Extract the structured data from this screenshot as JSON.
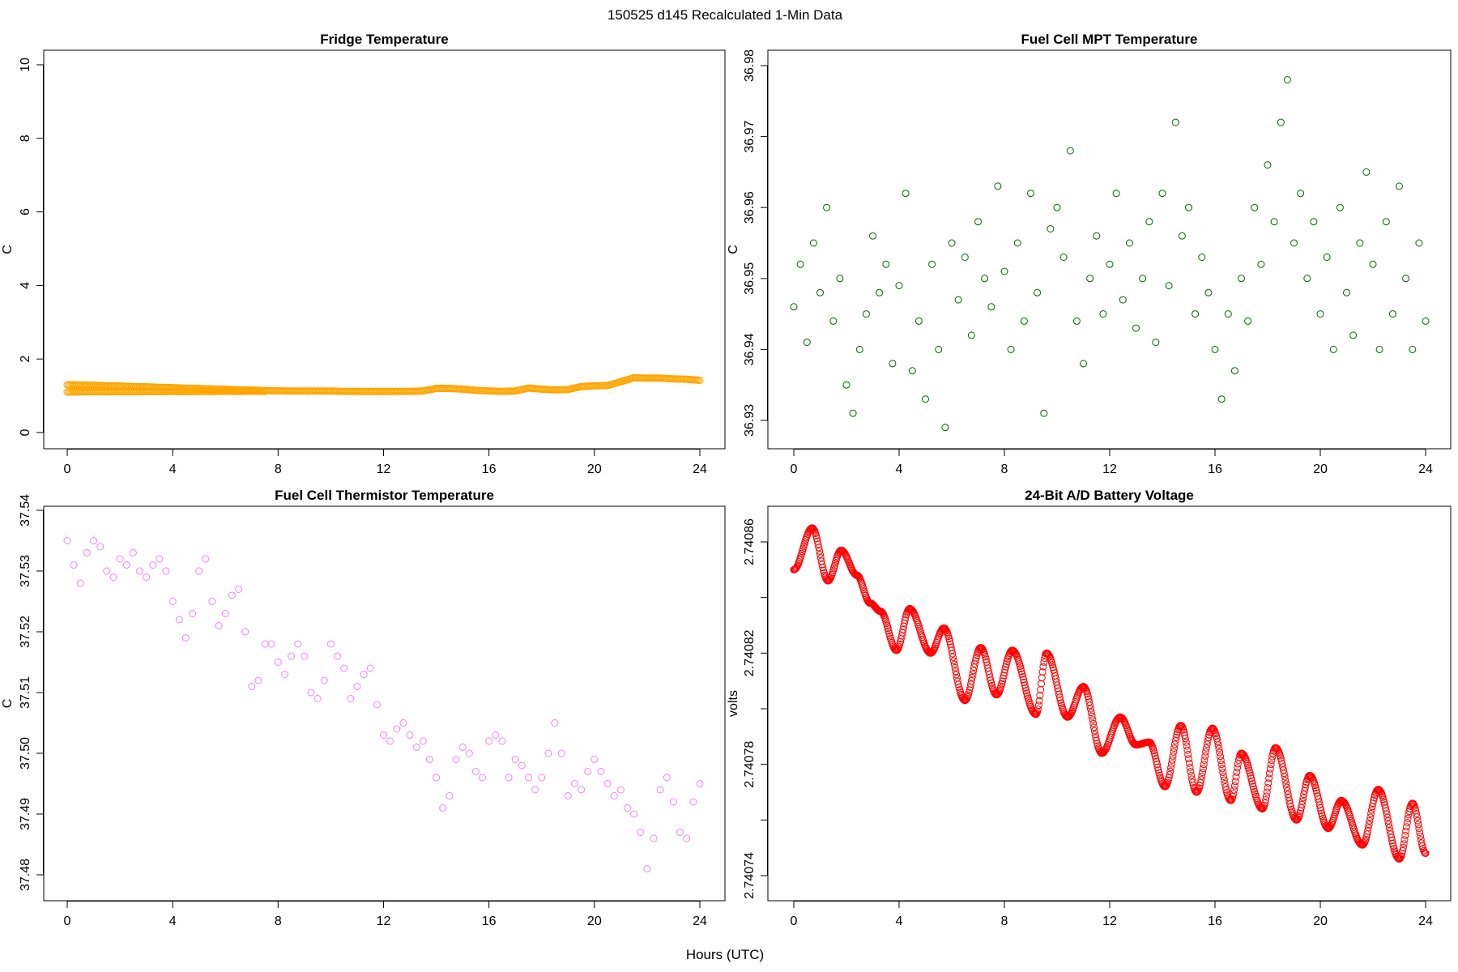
{
  "title": "150525   d145   Recalculated 1-Min Data",
  "xlabel": "Hours (UTC)",
  "chart_data": [
    {
      "type": "scatter",
      "title": "Fridge Temperature",
      "ylabel": "C",
      "color": "#FFA500",
      "xlim": [
        0,
        24
      ],
      "ylim": [
        0,
        10
      ],
      "xticks": [
        0,
        4,
        8,
        12,
        16,
        20,
        24
      ],
      "yticks": [
        0,
        2,
        4,
        6,
        8,
        10
      ],
      "ytick_labels": [
        "0",
        "2",
        "4",
        "6",
        "8",
        "10"
      ],
      "x_step": 0.5,
      "y": [
        1.2,
        1.2,
        1.2,
        1.19,
        1.19,
        1.18,
        1.18,
        1.17,
        1.17,
        1.16,
        1.16,
        1.15,
        1.15,
        1.14,
        1.14,
        1.13,
        1.13,
        1.13,
        1.13,
        1.13,
        1.13,
        1.12,
        1.12,
        1.12,
        1.12,
        1.12,
        1.12,
        1.13,
        1.2,
        1.2,
        1.18,
        1.15,
        1.13,
        1.12,
        1.13,
        1.21,
        1.18,
        1.16,
        1.17,
        1.25,
        1.27,
        1.28,
        1.38,
        1.49,
        1.48,
        1.48,
        1.46,
        1.45,
        1.42
      ]
    },
    {
      "type": "scatter",
      "title": "Fuel Cell MPT Temperature",
      "ylabel": "C",
      "color": "#006400",
      "xlim": [
        0,
        24
      ],
      "ylim": [
        36.928,
        36.982
      ],
      "xticks": [
        0,
        4,
        8,
        12,
        16,
        20,
        24
      ],
      "yticks": [
        36.93,
        36.94,
        36.95,
        36.96,
        36.97,
        36.98
      ],
      "ytick_labels": [
        "36.93",
        "36.94",
        "36.95",
        "36.96",
        "36.97",
        "36.98"
      ],
      "x_step": 0.25,
      "y": [
        36.946,
        36.952,
        36.941,
        36.955,
        36.948,
        36.96,
        36.944,
        36.95,
        36.935,
        36.931,
        36.94,
        36.945,
        36.956,
        36.948,
        36.952,
        36.938,
        36.949,
        36.962,
        36.937,
        36.944,
        36.933,
        36.952,
        36.94,
        36.929,
        36.955,
        36.947,
        36.953,
        36.942,
        36.958,
        36.95,
        36.946,
        36.963,
        36.951,
        36.94,
        36.955,
        36.944,
        36.962,
        36.948,
        36.931,
        36.957,
        36.96,
        36.953,
        36.968,
        36.944,
        36.938,
        36.95,
        36.956,
        36.945,
        36.952,
        36.962,
        36.947,
        36.955,
        36.943,
        36.95,
        36.958,
        36.941,
        36.962,
        36.949,
        36.972,
        36.956,
        36.96,
        36.945,
        36.953,
        36.948,
        36.94,
        36.933,
        36.945,
        36.937,
        36.95,
        36.944,
        36.96,
        36.952,
        36.966,
        36.958,
        36.972,
        36.978,
        36.955,
        36.962,
        36.95,
        36.958,
        36.945,
        36.953,
        36.94,
        36.96,
        36.948,
        36.942,
        36.955,
        36.965,
        36.952,
        36.94,
        36.958,
        36.945,
        36.963,
        36.95,
        36.94,
        36.955,
        36.944
      ]
    },
    {
      "type": "scatter",
      "title": "Fuel Cell Thermistor Temperature",
      "ylabel": "C",
      "color": "#EE82EE",
      "xlim": [
        0,
        24
      ],
      "ylim": [
        37.477,
        37.54
      ],
      "xticks": [
        0,
        4,
        8,
        12,
        16,
        20,
        24
      ],
      "yticks": [
        37.48,
        37.49,
        37.5,
        37.51,
        37.52,
        37.53,
        37.54
      ],
      "ytick_labels": [
        "37.48",
        "37.49",
        "37.50",
        "37.51",
        "37.52",
        "37.53",
        "37.54"
      ],
      "x_step": 0.25,
      "y": [
        37.535,
        37.531,
        37.528,
        37.533,
        37.535,
        37.534,
        37.53,
        37.529,
        37.532,
        37.531,
        37.533,
        37.53,
        37.529,
        37.531,
        37.532,
        37.53,
        37.525,
        37.522,
        37.519,
        37.523,
        37.53,
        37.532,
        37.525,
        37.521,
        37.523,
        37.526,
        37.527,
        37.52,
        37.511,
        37.512,
        37.518,
        37.518,
        37.515,
        37.513,
        37.516,
        37.518,
        37.516,
        37.51,
        37.509,
        37.512,
        37.518,
        37.516,
        37.514,
        37.509,
        37.511,
        37.513,
        37.514,
        37.508,
        37.503,
        37.502,
        37.504,
        37.505,
        37.503,
        37.501,
        37.502,
        37.499,
        37.496,
        37.491,
        37.493,
        37.499,
        37.501,
        37.5,
        37.497,
        37.496,
        37.502,
        37.503,
        37.502,
        37.496,
        37.499,
        37.498,
        37.496,
        37.494,
        37.496,
        37.5,
        37.505,
        37.5,
        37.493,
        37.495,
        37.494,
        37.497,
        37.499,
        37.497,
        37.495,
        37.493,
        37.494,
        37.491,
        37.49,
        37.487,
        37.481,
        37.486,
        37.494,
        37.496,
        37.492,
        37.487,
        37.486,
        37.492,
        37.495
      ]
    },
    {
      "type": "scatter",
      "title": "24-Bit A/D Battery Voltage",
      "ylabel": "volts",
      "color": "#FF0000",
      "xlim": [
        0,
        24
      ],
      "ylim": [
        2.74073,
        2.740873
      ],
      "xticks": [
        0,
        4,
        8,
        12,
        16,
        20,
        24
      ],
      "yticks": [
        2.74074,
        2.74076,
        2.74078,
        2.7408,
        2.74082,
        2.74084,
        2.74086
      ],
      "ytick_labels": [
        "2.74074",
        "",
        "2.74078",
        "",
        "2.74082",
        "",
        "2.74086"
      ],
      "x": [
        0,
        0.7,
        1.3,
        1.8,
        2.4,
        2.9,
        3.3,
        3.9,
        4.4,
        5.2,
        5.7,
        6.5,
        7.1,
        7.7,
        8.3,
        9.2,
        9.6,
        10.4,
        11.0,
        11.7,
        12.4,
        13.0,
        13.5,
        14.1,
        14.7,
        15.3,
        15.9,
        16.6,
        17.0,
        17.8,
        18.3,
        19.1,
        19.6,
        20.3,
        20.8,
        21.6,
        22.2,
        23.0,
        23.5,
        24.0
      ],
      "y": [
        2.74085,
        2.740865,
        2.740846,
        2.740857,
        2.740848,
        2.740838,
        2.740835,
        2.740821,
        2.740836,
        2.74082,
        2.740829,
        2.740803,
        2.740822,
        2.740805,
        2.740821,
        2.740798,
        2.74082,
        2.740797,
        2.740808,
        2.740784,
        2.740797,
        2.740787,
        2.740788,
        2.740772,
        2.740794,
        2.74077,
        2.740793,
        2.740767,
        2.740784,
        2.740764,
        2.740786,
        2.74076,
        2.740776,
        2.740757,
        2.740767,
        2.740751,
        2.740771,
        2.740746,
        2.740766,
        2.740748
      ]
    }
  ]
}
